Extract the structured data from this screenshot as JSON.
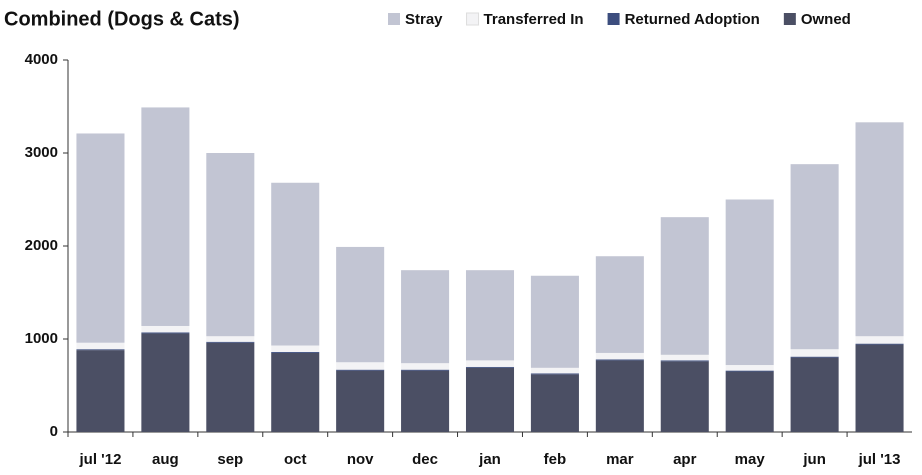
{
  "chart_data": {
    "type": "stacked_bar",
    "title": "Combined (Dogs & Cats)",
    "categories": [
      "jul '12",
      "aug",
      "sep",
      "oct",
      "nov",
      "dec",
      "jan",
      "feb",
      "mar",
      "apr",
      "may",
      "jun",
      "jul '13"
    ],
    "series": [
      {
        "name": "Owned",
        "color": "#4b4f64",
        "values": [
          880,
          1060,
          960,
          850,
          660,
          660,
          690,
          620,
          770,
          760,
          650,
          800,
          940
        ]
      },
      {
        "name": "Returned Adoption",
        "color": "#3c4d7e",
        "values": [
          10,
          10,
          10,
          10,
          10,
          10,
          10,
          10,
          10,
          10,
          10,
          10,
          10
        ]
      },
      {
        "name": "Transferred In",
        "color": "#f3f3f5",
        "values": [
          70,
          70,
          60,
          70,
          80,
          70,
          70,
          60,
          70,
          60,
          60,
          80,
          80
        ]
      },
      {
        "name": "Stray",
        "color": "#c2c5d3",
        "values": [
          2250,
          2350,
          1970,
          1750,
          1240,
          1000,
          970,
          990,
          1040,
          1480,
          1780,
          1990,
          2300
        ]
      }
    ],
    "legend_order": [
      "Stray",
      "Transferred In",
      "Returned Adoption",
      "Owned"
    ],
    "ylim": [
      0,
      4000
    ],
    "yticks": [
      0,
      1000,
      2000,
      3000,
      4000
    ],
    "grid": false
  }
}
